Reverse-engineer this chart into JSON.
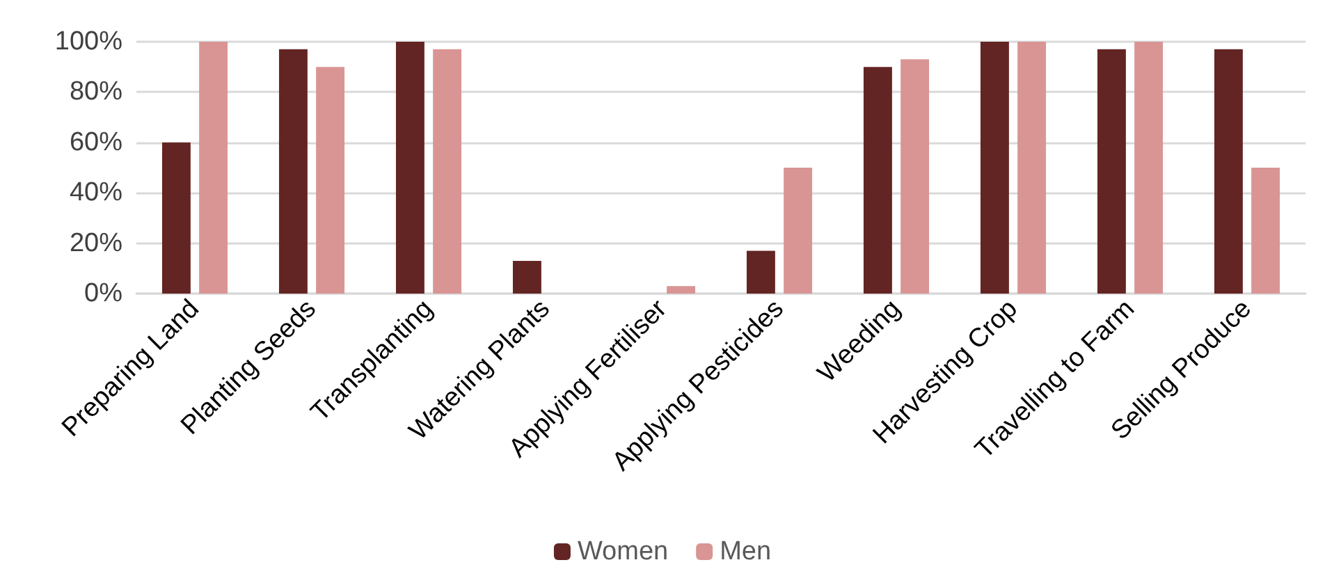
{
  "chart_data": {
    "type": "bar",
    "categories": [
      "Preparing Land",
      "Planting Seeds",
      "Transplanting",
      "Watering Plants",
      "Applying Fertiliser",
      "Applying Pesticides",
      "Weeding",
      "Harvesting Crop",
      "Travelling to Farm",
      "Selling Produce"
    ],
    "series": [
      {
        "name": "Women",
        "color": "#632523",
        "values": [
          60,
          97,
          100,
          13,
          0,
          17,
          90,
          100,
          97,
          97
        ]
      },
      {
        "name": "Men",
        "color": "#d99594",
        "values": [
          100,
          90,
          97,
          0,
          3,
          50,
          93,
          100,
          100,
          50
        ]
      }
    ],
    "ylim": [
      0,
      100
    ],
    "yticks": [
      {
        "value": 0,
        "label": "0%"
      },
      {
        "value": 20,
        "label": "20%"
      },
      {
        "value": 40,
        "label": "40%"
      },
      {
        "value": 60,
        "label": "60%"
      },
      {
        "value": 80,
        "label": "80%"
      },
      {
        "value": 100,
        "label": "100%"
      }
    ],
    "grid": "y",
    "legend": "bottom"
  }
}
